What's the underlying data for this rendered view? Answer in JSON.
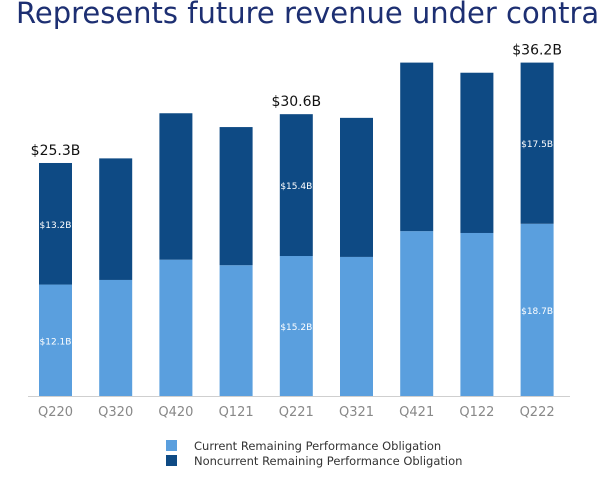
{
  "chart_data": {
    "type": "bar",
    "stacked": true,
    "title": "Represents future revenue under contract",
    "categories": [
      "Q220",
      "Q320",
      "Q420",
      "Q121",
      "Q221",
      "Q321",
      "Q421",
      "Q122",
      "Q222"
    ],
    "series": [
      {
        "name": "Current Remaining Performance Obligation",
        "color": "#5a9fde",
        "values": [
          12.1,
          12.6,
          14.8,
          14.2,
          15.2,
          15.1,
          17.9,
          17.7,
          18.7
        ]
      },
      {
        "name": "Noncurrent Remaining Performance Obligation",
        "color": "#0e4a84",
        "values": [
          13.2,
          13.2,
          15.9,
          15.0,
          15.4,
          15.1,
          18.3,
          17.4,
          17.5
        ]
      }
    ],
    "ylim": [
      0,
      40
    ],
    "units": "$B",
    "grid": false,
    "legend_position": "bottom",
    "total_labels": {
      "0": "$25.3B",
      "4": "$30.6B",
      "8": "$36.2B"
    },
    "segment_labels": {
      "current": {
        "0": "$12.1B",
        "4": "$15.2B",
        "8": "$18.7B"
      },
      "noncurrent": {
        "0": "$13.2B",
        "4": "$15.4B",
        "8": "$17.5B"
      }
    }
  }
}
